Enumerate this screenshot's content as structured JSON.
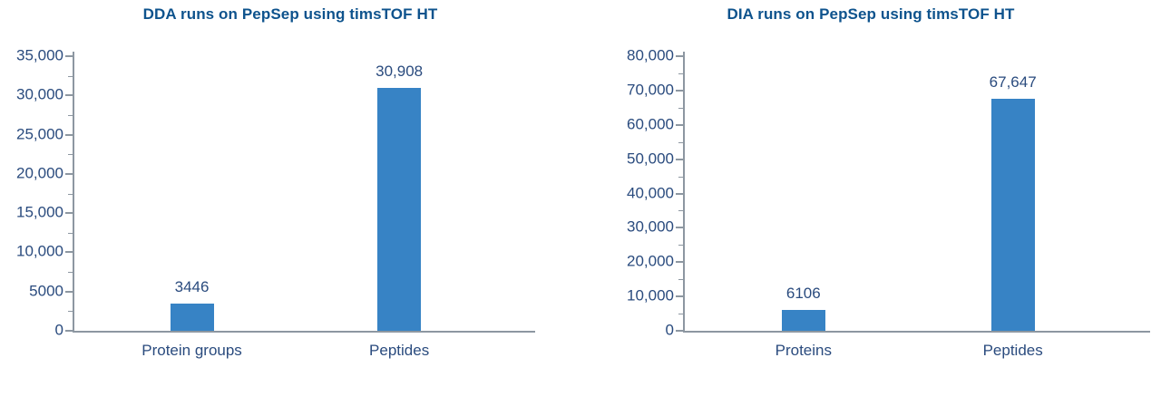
{
  "colors": {
    "bar": "#3783c5",
    "title_text": "#0e538d",
    "label_text": "#2a4b7e",
    "axis": "#8d97a1",
    "background": "#ffffff"
  },
  "chart_data": [
    {
      "type": "bar",
      "title": "DDA runs on PepSep using timsTOF HT",
      "categories": [
        "Protein groups",
        "Peptides"
      ],
      "values": [
        3446,
        30908
      ],
      "value_labels": [
        "3446",
        "30,908"
      ],
      "xlabel": "",
      "ylabel": "",
      "ylim": [
        0,
        35000
      ],
      "ytick_step": 5000,
      "yticks": [
        "0",
        "5000",
        "10,000",
        "15,000",
        "20,000",
        "25,000",
        "30,000",
        "35,000"
      ],
      "minor_ticks_between_majors": 1,
      "grid": false,
      "legend": false
    },
    {
      "type": "bar",
      "title": "DIA runs on PepSep using timsTOF HT",
      "categories": [
        "Proteins",
        "Peptides"
      ],
      "values": [
        6106,
        67647
      ],
      "value_labels": [
        "6106",
        "67,647"
      ],
      "xlabel": "",
      "ylabel": "",
      "ylim": [
        0,
        80000
      ],
      "ytick_step": 10000,
      "yticks": [
        "0",
        "10,000",
        "20,000",
        "30,000",
        "40,000",
        "50,000",
        "60,000",
        "70,000",
        "80,000"
      ],
      "minor_ticks_between_majors": 1,
      "grid": false,
      "legend": false
    }
  ]
}
